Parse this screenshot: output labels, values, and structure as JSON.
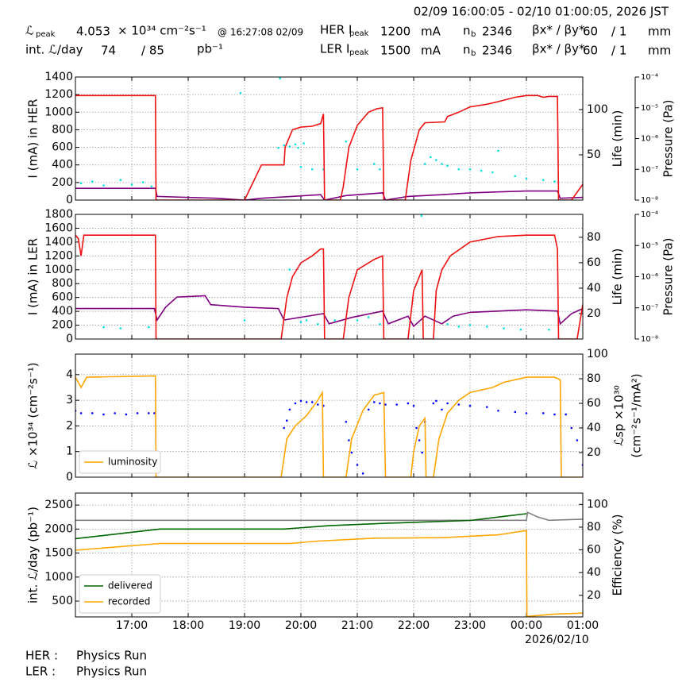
{
  "header": {
    "range": "02/09 16:00:05 - 02/10 01:00:05, 2026 JST",
    "lum_peak_symbol": "ℒ",
    "lum_peak_sub": "peak",
    "lum_peak": 4.053,
    "lum_unit": "× 10³⁴ cm⁻²s⁻¹",
    "lum_peak_time": "@ 16:27:08 02/09",
    "int_lum_label": "int. ℒ/day",
    "int_lum": 74,
    "int_lum_max": "/ 85",
    "int_lum_unit": "pb⁻¹",
    "her": {
      "label": "HER I",
      "sub": "peak",
      "current": 1200,
      "unit": "mA",
      "nb_label": "n",
      "nb_sub": "b",
      "nb": 2346,
      "beta_label": "βx* / βy*",
      "beta_x": 60,
      "beta_y": "/ 1",
      "beta_unit": "mm"
    },
    "ler": {
      "label": "LER I",
      "sub": "peak",
      "current": 1500,
      "unit": "mA",
      "nb_label": "n",
      "nb_sub": "b",
      "nb": 2346,
      "beta_label": "βx* / βy*",
      "beta_x": 60,
      "beta_y": "/ 1",
      "beta_unit": "mm"
    }
  },
  "x_axis": {
    "xlim": [
      16,
      25
    ],
    "xticks": [
      {
        "value": 17,
        "label": "17:00"
      },
      {
        "value": 18,
        "label": "18:00"
      },
      {
        "value": 19,
        "label": "19:00"
      },
      {
        "value": 20,
        "label": "20:00"
      },
      {
        "value": 21,
        "label": "21:00"
      },
      {
        "value": 22,
        "label": "22:00"
      },
      {
        "value": 23,
        "label": "23:00"
      },
      {
        "value": 24,
        "label": "00:00",
        "sublabel": "2026/02/10"
      },
      {
        "value": 25,
        "label": "01:00"
      }
    ]
  },
  "chart_data": [
    {
      "type": "line",
      "ylabel": "I (mA) in HER",
      "y2label": "Life (min)",
      "y3label": "Pressure (Pa)",
      "grid": true,
      "ylim": [
        0,
        1400
      ],
      "yticks": [
        0,
        200,
        400,
        600,
        800,
        1000,
        1200,
        1400
      ],
      "y2lim": [
        0,
        136
      ],
      "y2ticks": [
        50,
        100
      ],
      "y3lim": [
        1e-08,
        0.0001
      ],
      "y3log": true,
      "y3ticks": [
        {
          "value": 1e-08,
          "label": "10⁻⁸"
        },
        {
          "value": 1e-07,
          "label": "10⁻⁷"
        },
        {
          "value": 1e-06,
          "label": "10⁻⁶"
        },
        {
          "value": 1e-05,
          "label": "10⁻⁵"
        },
        {
          "value": 0.0001,
          "label": "10⁻⁴"
        }
      ],
      "series": [
        {
          "type": "scatter",
          "axis": "y3",
          "color": "#00e0e0",
          "x": [
            16.1,
            16.3,
            16.5,
            16.8,
            17.0,
            17.2,
            17.35,
            18.93,
            19.6,
            19.63,
            19.7,
            19.8,
            19.9,
            19.95,
            20.0,
            20.05,
            20.2,
            20.4,
            20.8,
            21.0,
            21.3,
            21.4,
            22.2,
            22.3,
            22.4,
            22.5,
            22.6,
            22.8,
            23.0,
            23.2,
            23.4,
            23.5,
            23.8,
            24.0,
            24.3,
            24.5
          ],
          "values": [
            3.5e-08,
            4e-08,
            3e-08,
            4.5e-08,
            3.2e-08,
            3.8e-08,
            2.8e-08,
            3e-05,
            5e-07,
            9e-05,
            6e-07,
            5.5e-07,
            6.5e-07,
            5e-07,
            1.2e-07,
            7e-07,
            1e-07,
            1e-07,
            8e-07,
            1e-07,
            1.5e-07,
            1e-07,
            1.5e-07,
            2.5e-07,
            2e-07,
            1.5e-07,
            1.3e-07,
            1e-07,
            1e-07,
            9e-08,
            8e-08,
            4e-07,
            6e-08,
            5e-08,
            4.5e-08,
            4e-08
          ]
        },
        {
          "type": "line",
          "axis": "y2",
          "color": "#800080",
          "x": [
            16,
            17.42,
            17.45,
            18.5,
            19,
            19.3,
            20.35,
            20.42,
            20.8,
            21.45,
            21.5,
            21.9,
            22.5,
            23,
            23.5,
            24,
            24.55,
            24.6,
            25
          ],
          "values": [
            13,
            13,
            4,
            2,
            0,
            2,
            6,
            0,
            5,
            8,
            0,
            4,
            6,
            8,
            9,
            10,
            10,
            2,
            3
          ]
        },
        {
          "type": "line",
          "axis": "y",
          "color": "#ee1111",
          "x": [
            16,
            17.42,
            17.43,
            19.0,
            19.3,
            19.7,
            19.72,
            19.85,
            20.0,
            20.2,
            20.35,
            20.4,
            20.42,
            20.7,
            20.75,
            20.85,
            21.0,
            21.2,
            21.35,
            21.45,
            21.47,
            21.85,
            21.95,
            22.1,
            22.2,
            22.55,
            22.6,
            22.8,
            23.0,
            23.3,
            23.5,
            23.8,
            24.0,
            24.2,
            24.3,
            24.4,
            24.55,
            24.57,
            24.8,
            25
          ],
          "values": [
            1190,
            1190,
            0,
            0,
            400,
            400,
            600,
            800,
            830,
            840,
            870,
            980,
            0,
            0,
            150,
            600,
            850,
            1000,
            1040,
            1050,
            0,
            0,
            450,
            800,
            880,
            890,
            950,
            1000,
            1060,
            1090,
            1120,
            1170,
            1190,
            1190,
            1170,
            1180,
            1180,
            0,
            0,
            180
          ]
        }
      ]
    },
    {
      "type": "line",
      "ylabel": "I (mA) in LER",
      "y2label": "Life (min)",
      "y3label": "Pressure (Pa)",
      "grid": true,
      "ylim": [
        0,
        1800
      ],
      "yticks": [
        0,
        200,
        400,
        600,
        800,
        1000,
        1200,
        1400,
        1600,
        1800
      ],
      "y2lim": [
        0,
        98
      ],
      "y2ticks": [
        20,
        40,
        60,
        80
      ],
      "y3lim": [
        1e-08,
        0.0001
      ],
      "y3log": true,
      "y3ticks": [
        {
          "value": 1e-08,
          "label": "10⁻⁸"
        },
        {
          "value": 1e-07,
          "label": "10⁻⁷"
        },
        {
          "value": 1e-06,
          "label": "10⁻⁶"
        },
        {
          "value": 1e-05,
          "label": "10⁻⁵"
        },
        {
          "value": 0.0001,
          "label": "10⁻⁴"
        }
      ],
      "series": [
        {
          "type": "scatter",
          "axis": "y3",
          "color": "#00e0e0",
          "x": [
            16.5,
            16.8,
            17.3,
            19.0,
            19.8,
            20.0,
            20.1,
            20.3,
            20.6,
            21.0,
            21.2,
            21.4,
            22.14,
            22.6,
            22.8,
            23.0,
            23.3,
            23.6,
            23.9,
            24.4
          ],
          "values": [
            2.4e-08,
            2.2e-08,
            2.4e-08,
            4e-08,
            1.7e-06,
            3.5e-08,
            4e-08,
            3e-08,
            4e-08,
            4e-08,
            5e-08,
            3e-08,
            9e-05,
            3e-08,
            2.5e-08,
            2.8e-08,
            2.5e-08,
            2.2e-08,
            2e-08,
            2e-08
          ]
        },
        {
          "type": "line",
          "axis": "y2",
          "color": "#800080",
          "x": [
            16,
            17.4,
            17.45,
            17.6,
            17.8,
            18.3,
            18.4,
            19,
            19.6,
            19.7,
            20.4,
            20.5,
            20.9,
            21.45,
            21.55,
            21.9,
            22.0,
            22.2,
            22.5,
            22.7,
            23,
            24,
            24.55,
            24.6,
            24.8,
            25
          ],
          "values": [
            24,
            24,
            15,
            25,
            33,
            34,
            27,
            25,
            24,
            15,
            20,
            12,
            17,
            22,
            12,
            18,
            10,
            18,
            12,
            18,
            21,
            23,
            22,
            12,
            20,
            24
          ]
        },
        {
          "type": "line",
          "axis": "y",
          "color": "#ee1111",
          "x": [
            16,
            16.05,
            16.1,
            16.15,
            17.42,
            17.43,
            19.65,
            19.75,
            19.85,
            20.0,
            20.2,
            20.35,
            20.4,
            20.42,
            20.75,
            20.85,
            21.0,
            21.3,
            21.45,
            21.47,
            21.9,
            22.0,
            22.1,
            22.15,
            22.17,
            22.35,
            22.4,
            22.5,
            22.65,
            23.0,
            23.5,
            24.0,
            24.5,
            24.55,
            24.57,
            24.9,
            25
          ],
          "values": [
            1500,
            1450,
            1200,
            1500,
            1500,
            0,
            0,
            600,
            900,
            1100,
            1200,
            1300,
            1300,
            0,
            0,
            600,
            1000,
            1150,
            1200,
            0,
            0,
            700,
            900,
            1000,
            0,
            0,
            700,
            1000,
            1200,
            1400,
            1480,
            1500,
            1500,
            1300,
            0,
            0,
            500
          ]
        }
      ]
    },
    {
      "type": "line",
      "ylabel": "ℒ ×10³⁴ (cm⁻²s⁻¹)",
      "y2label": [
        "ℒsp ×10³⁰",
        "(cm⁻²s⁻¹/mA²)"
      ],
      "grid": true,
      "legend": "lower left",
      "ylim": [
        0,
        4.8
      ],
      "yticks": [
        0,
        1,
        2,
        3,
        4
      ],
      "y2lim": [
        0,
        100
      ],
      "y2ticks": [
        20,
        40,
        60,
        80,
        100
      ],
      "series": [
        {
          "type": "scatter",
          "axis": "y2",
          "color": "#0000ff",
          "x": [
            16.0,
            16.1,
            16.3,
            16.5,
            16.7,
            16.9,
            17.1,
            17.3,
            17.4,
            19.7,
            19.75,
            19.8,
            19.9,
            20.0,
            20.1,
            20.2,
            20.3,
            20.4,
            20.8,
            20.85,
            20.9,
            21.0,
            21.1,
            21.2,
            21.3,
            21.4,
            21.5,
            21.7,
            21.9,
            22.0,
            22.05,
            22.1,
            22.15,
            22.2,
            22.35,
            22.4,
            22.5,
            22.6,
            22.8,
            23.0,
            23.3,
            23.5,
            23.8,
            24.0,
            24.3,
            24.5,
            24.7,
            24.8,
            24.9,
            25.0
          ],
          "values": [
            54,
            52,
            52,
            51,
            52,
            51,
            52,
            52,
            52,
            40,
            46,
            55,
            60,
            62,
            61,
            61,
            59,
            58,
            45,
            30,
            20,
            10,
            3,
            55,
            61,
            60,
            59,
            59,
            60,
            58,
            40,
            30,
            20,
            45,
            60,
            62,
            55,
            60,
            59,
            58,
            57,
            54,
            53,
            52,
            52,
            51,
            51,
            40,
            30,
            10
          ]
        },
        {
          "type": "line",
          "axis": "y",
          "color": "#ffa500",
          "name": "luminosity",
          "x": [
            16,
            16.1,
            16.2,
            17.42,
            17.43,
            19.65,
            19.75,
            19.9,
            20.1,
            20.3,
            20.38,
            20.4,
            20.8,
            20.9,
            21.1,
            21.3,
            21.47,
            21.5,
            21.95,
            22.0,
            22.1,
            22.2,
            22.22,
            22.35,
            22.45,
            22.6,
            22.8,
            23.0,
            23.4,
            23.6,
            24.0,
            24.5,
            24.6,
            24.62,
            25
          ],
          "values": [
            3.9,
            3.5,
            3.9,
            3.95,
            0,
            0,
            1.5,
            2.0,
            2.4,
            3.0,
            3.3,
            0,
            0,
            1.5,
            2.6,
            3.2,
            3.3,
            0,
            0,
            1.0,
            2.0,
            2.3,
            0,
            0,
            1.5,
            2.5,
            3.0,
            3.3,
            3.5,
            3.7,
            3.9,
            3.9,
            3.8,
            0,
            0
          ]
        }
      ]
    },
    {
      "type": "line",
      "ylabel": "int. ℒ/day (pb⁻¹)",
      "y2label": "Efficiency (%)",
      "grid": true,
      "legend": "lower left",
      "ylim": [
        170,
        2750
      ],
      "yticks": [
        500,
        1000,
        1500,
        2000,
        2500
      ],
      "y2lim": [
        1,
        110
      ],
      "y2ticks": [
        20,
        40,
        60,
        80,
        100
      ],
      "series": [
        {
          "type": "line",
          "axis": "y2",
          "color": "#808080",
          "x": [
            16,
            24.0,
            24.02,
            24.2,
            24.4,
            25
          ],
          "values": [
            86,
            86,
            93,
            89,
            86,
            87
          ]
        },
        {
          "type": "line",
          "axis": "y",
          "color": "#006400",
          "name": "delivered",
          "x": [
            16,
            17.5,
            19.7,
            20.5,
            21.5,
            23,
            24.0
          ],
          "values": [
            1800,
            2000,
            2000,
            2070,
            2120,
            2180,
            2320
          ]
        },
        {
          "type": "line",
          "axis": "y",
          "color": "#ffa500",
          "name": "recorded",
          "x": [
            16,
            17.5,
            19.8,
            20.3,
            21.3,
            22.5,
            23.5,
            24.0,
            24.01,
            24.5,
            25
          ],
          "values": [
            1560,
            1700,
            1700,
            1750,
            1810,
            1820,
            1880,
            1970,
            180,
            230,
            250
          ]
        }
      ]
    }
  ],
  "footer": [
    {
      "ring": "HER :",
      "status": "Physics Run"
    },
    {
      "ring": "LER :",
      "status": "Physics Run"
    }
  ]
}
